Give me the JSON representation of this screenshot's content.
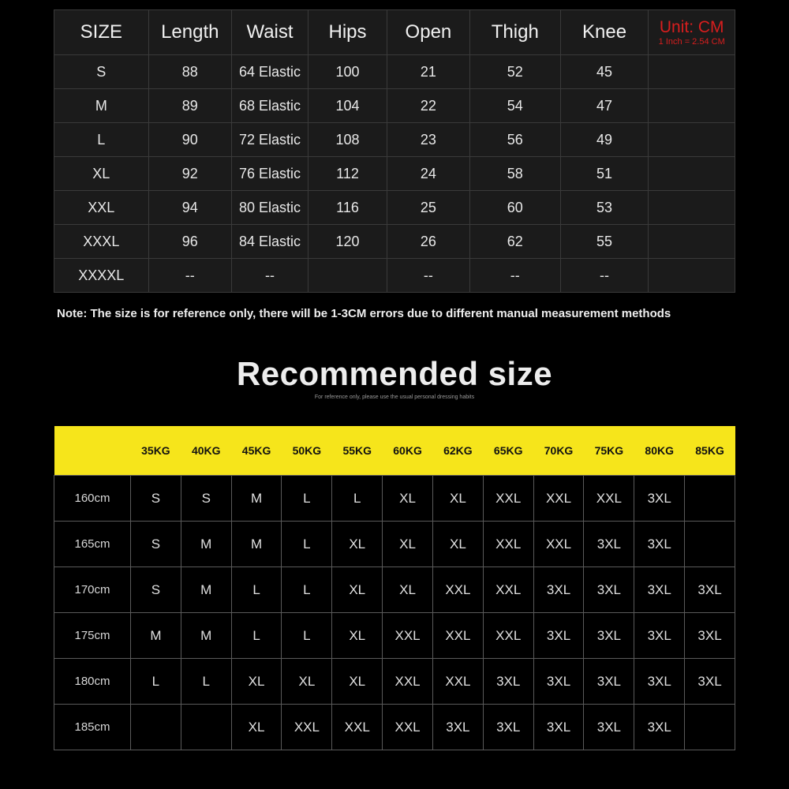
{
  "size_chart": {
    "headers": [
      "SIZE",
      "Length",
      "Waist",
      "Hips",
      "Open",
      "Thigh",
      "Knee"
    ],
    "unit_label": "Unit: CM",
    "unit_conversion": "1 Inch = 2.54 CM",
    "rows": [
      [
        "S",
        "88",
        "64 Elastic",
        "100",
        "21",
        "52",
        "45"
      ],
      [
        "M",
        "89",
        "68 Elastic",
        "104",
        "22",
        "54",
        "47"
      ],
      [
        "L",
        "90",
        "72 Elastic",
        "108",
        "23",
        "56",
        "49"
      ],
      [
        "XL",
        "92",
        "76 Elastic",
        "112",
        "24",
        "58",
        "51"
      ],
      [
        "XXL",
        "94",
        "80 Elastic",
        "116",
        "25",
        "60",
        "53"
      ],
      [
        "XXXL",
        "96",
        "84 Elastic",
        "120",
        "26",
        "62",
        "55"
      ],
      [
        "XXXXL",
        "--",
        "--",
        "",
        "--",
        "--",
        "--"
      ]
    ],
    "unit_color": "#d81e1e"
  },
  "note": "Note: The size is for reference only, there will be 1-3CM errors due to different manual measurement methods",
  "recommended": {
    "title": "Recommended size",
    "subtitle": "For reference only, please use the usual personal dressing habits",
    "weights": [
      "35KG",
      "40KG",
      "45KG",
      "50KG",
      "55KG",
      "60KG",
      "62KG",
      "65KG",
      "70KG",
      "75KG",
      "80KG",
      "85KG"
    ],
    "rows": [
      {
        "height": "160cm",
        "sizes": [
          "S",
          "S",
          "M",
          "L",
          "L",
          "XL",
          "XL",
          "XXL",
          "XXL",
          "XXL",
          "3XL",
          ""
        ]
      },
      {
        "height": "165cm",
        "sizes": [
          "S",
          "M",
          "M",
          "L",
          "XL",
          "XL",
          "XL",
          "XXL",
          "XXL",
          "3XL",
          "3XL",
          ""
        ]
      },
      {
        "height": "170cm",
        "sizes": [
          "S",
          "M",
          "L",
          "L",
          "XL",
          "XL",
          "XXL",
          "XXL",
          "3XL",
          "3XL",
          "3XL",
          "3XL"
        ]
      },
      {
        "height": "175cm",
        "sizes": [
          "M",
          "M",
          "L",
          "L",
          "XL",
          "XXL",
          "XXL",
          "XXL",
          "3XL",
          "3XL",
          "3XL",
          "3XL"
        ]
      },
      {
        "height": "180cm",
        "sizes": [
          "L",
          "L",
          "XL",
          "XL",
          "XL",
          "XXL",
          "XXL",
          "3XL",
          "3XL",
          "3XL",
          "3XL",
          "3XL"
        ]
      },
      {
        "height": "185cm",
        "sizes": [
          "",
          "",
          "XL",
          "XXL",
          "XXL",
          "XXL",
          "3XL",
          "3XL",
          "3XL",
          "3XL",
          "3XL",
          ""
        ]
      }
    ],
    "header_color": "#f6e51b"
  }
}
